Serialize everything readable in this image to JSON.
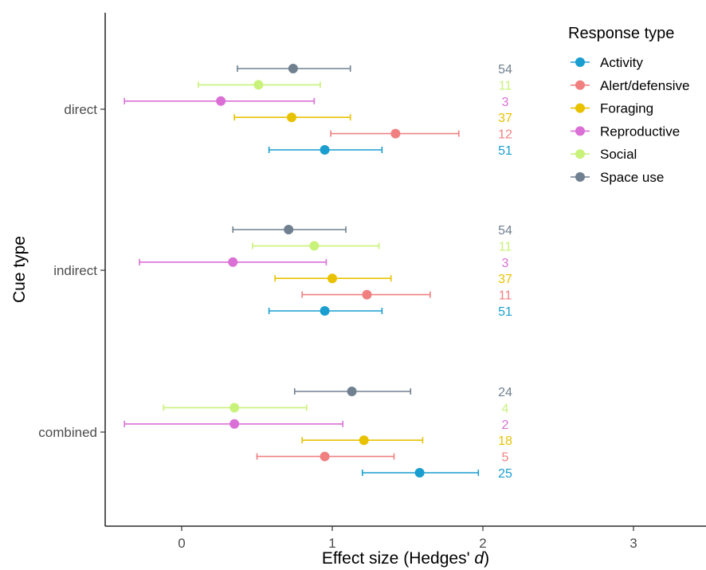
{
  "chart_data": {
    "type": "scatter",
    "orientation": "horizontal",
    "title": "",
    "xlabel": "Effect size (Hedges' ",
    "xlabel_italic": "d",
    "xlabel_close": ")",
    "ylabel": "Cue type",
    "xlim": [
      -0.5,
      3.5
    ],
    "xticks": [
      "0",
      "1",
      "2",
      "3"
    ],
    "xtick_values": [
      0,
      1,
      2,
      3
    ],
    "categories": [
      "direct",
      "indirect",
      "combined"
    ],
    "grid": false,
    "legend": {
      "title": "Response type",
      "position": "top-right"
    },
    "series": [
      {
        "name": "Activity",
        "color": "#1a9ecf",
        "estimate": [
          0.95,
          0.95,
          1.58
        ],
        "lower": [
          0.58,
          0.58,
          1.2
        ],
        "upper": [
          1.33,
          1.33,
          1.97
        ],
        "n": [
          "51",
          "51",
          "25"
        ]
      },
      {
        "name": "Alert/defensive",
        "color": "#f08080",
        "estimate": [
          1.42,
          1.23,
          0.95
        ],
        "lower": [
          0.99,
          0.8,
          0.5
        ],
        "upper": [
          1.84,
          1.65,
          1.41
        ],
        "n": [
          "12",
          "11",
          "5"
        ]
      },
      {
        "name": "Foraging",
        "color": "#e8c200",
        "estimate": [
          0.73,
          1.0,
          1.21
        ],
        "lower": [
          0.35,
          0.62,
          0.8
        ],
        "upper": [
          1.12,
          1.39,
          1.6
        ],
        "n": [
          "37",
          "37",
          "18"
        ]
      },
      {
        "name": "Reproductive",
        "color": "#da70d6",
        "estimate": [
          0.26,
          0.34,
          0.35
        ],
        "lower": [
          -0.38,
          -0.28,
          -0.38
        ],
        "upper": [
          0.88,
          0.96,
          1.07
        ],
        "n": [
          "3",
          "3",
          "2"
        ]
      },
      {
        "name": "Social",
        "color": "#c9f27a",
        "estimate": [
          0.51,
          0.88,
          0.35
        ],
        "lower": [
          0.11,
          0.47,
          -0.12
        ],
        "upper": [
          0.92,
          1.31,
          0.83
        ],
        "n": [
          "11",
          "11",
          "4"
        ]
      },
      {
        "name": "Space use",
        "color": "#708090",
        "estimate": [
          0.74,
          0.71,
          1.13
        ],
        "lower": [
          0.37,
          0.34,
          0.75
        ],
        "upper": [
          1.12,
          1.09,
          1.52
        ],
        "n": [
          "54",
          "54",
          "24"
        ]
      }
    ]
  }
}
